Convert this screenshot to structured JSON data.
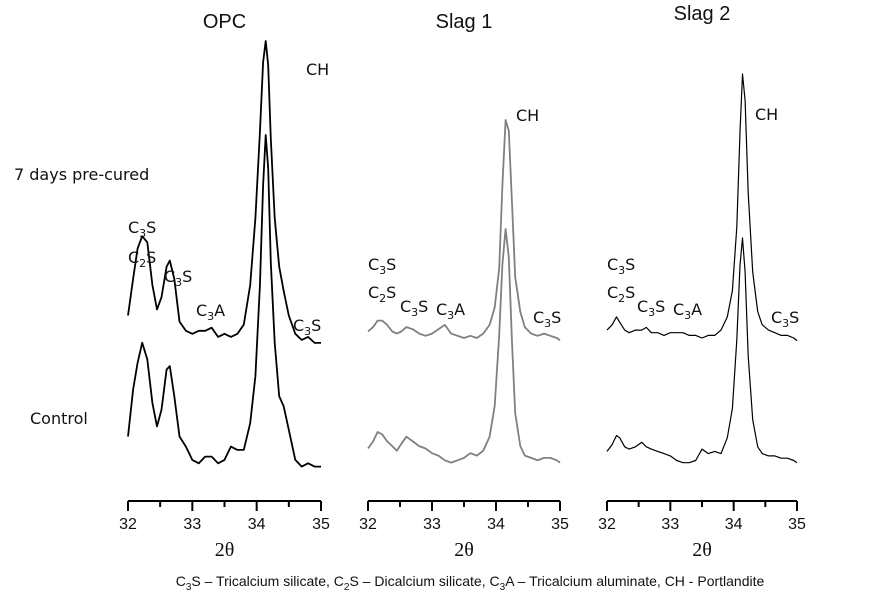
{
  "chart_data": [
    {
      "type": "line",
      "title": "OPC",
      "xlabel": "2θ",
      "xlim": [
        32,
        35
      ],
      "xticks": [
        "32",
        "33",
        "34",
        "35"
      ],
      "color": "#000000",
      "series": [
        {
          "name": "7 days pre-cured",
          "x": [
            32.0,
            32.08,
            32.15,
            32.22,
            32.3,
            32.38,
            32.45,
            32.52,
            32.6,
            32.65,
            32.72,
            32.8,
            32.9,
            33.0,
            33.1,
            33.2,
            33.3,
            33.4,
            33.5,
            33.6,
            33.7,
            33.8,
            33.9,
            33.98,
            34.05,
            34.1,
            34.14,
            34.18,
            34.22,
            34.28,
            34.35,
            34.42,
            34.5,
            34.6,
            34.7,
            34.8,
            34.9,
            35.0
          ],
          "y": [
            0.1,
            0.22,
            0.32,
            0.36,
            0.34,
            0.2,
            0.12,
            0.16,
            0.26,
            0.28,
            0.22,
            0.08,
            0.05,
            0.04,
            0.05,
            0.05,
            0.06,
            0.03,
            0.04,
            0.03,
            0.04,
            0.07,
            0.2,
            0.42,
            0.7,
            0.93,
            1.0,
            0.92,
            0.68,
            0.42,
            0.26,
            0.18,
            0.1,
            0.04,
            0.02,
            0.03,
            0.01,
            0.01
          ]
        },
        {
          "name": "Control",
          "x": [
            32.0,
            32.08,
            32.15,
            32.22,
            32.3,
            32.38,
            32.45,
            32.52,
            32.6,
            32.65,
            32.72,
            32.8,
            32.9,
            33.0,
            33.1,
            33.2,
            33.3,
            33.4,
            33.5,
            33.6,
            33.7,
            33.8,
            33.9,
            33.98,
            34.05,
            34.1,
            34.14,
            34.18,
            34.22,
            34.28,
            34.35,
            34.42,
            34.5,
            34.6,
            34.7,
            34.8,
            34.9,
            35.0
          ],
          "y": [
            0.1,
            0.24,
            0.32,
            0.38,
            0.33,
            0.2,
            0.13,
            0.18,
            0.3,
            0.31,
            0.22,
            0.1,
            0.07,
            0.03,
            0.02,
            0.04,
            0.04,
            0.02,
            0.03,
            0.07,
            0.06,
            0.06,
            0.14,
            0.28,
            0.55,
            0.85,
            1.0,
            0.9,
            0.62,
            0.38,
            0.22,
            0.19,
            0.12,
            0.03,
            0.01,
            0.02,
            0.01,
            0.01
          ]
        }
      ],
      "annotations": [
        {
          "text": "C3S",
          "x": 32.2
        },
        {
          "text": "C2S",
          "x": 32.2
        },
        {
          "text": "C3S",
          "x": 32.65
        },
        {
          "text": "C3A",
          "x": 33.3
        },
        {
          "text": "CH",
          "x": 34.15
        },
        {
          "text": "C3S",
          "x": 34.7
        }
      ]
    },
    {
      "type": "line",
      "title": "Slag 1",
      "xlabel": "2θ",
      "xlim": [
        32,
        35
      ],
      "xticks": [
        "32",
        "33",
        "34",
        "35"
      ],
      "color": "#808080",
      "series": [
        {
          "name": "7 days pre-cured",
          "x": [
            32.0,
            32.08,
            32.15,
            32.22,
            32.3,
            32.38,
            32.45,
            32.52,
            32.6,
            32.7,
            32.8,
            32.9,
            33.0,
            33.1,
            33.2,
            33.3,
            33.4,
            33.5,
            33.6,
            33.7,
            33.8,
            33.9,
            33.98,
            34.05,
            34.1,
            34.15,
            34.2,
            34.25,
            34.3,
            34.38,
            34.45,
            34.55,
            34.65,
            34.75,
            34.85,
            34.95,
            35.0
          ],
          "y": [
            0.03,
            0.05,
            0.08,
            0.08,
            0.06,
            0.03,
            0.02,
            0.03,
            0.05,
            0.04,
            0.02,
            0.01,
            0.02,
            0.04,
            0.06,
            0.02,
            0.01,
            0.0,
            0.01,
            0.0,
            0.02,
            0.06,
            0.14,
            0.32,
            0.7,
            1.0,
            0.95,
            0.62,
            0.28,
            0.12,
            0.05,
            0.02,
            0.01,
            0.02,
            0.01,
            0.0,
            -0.01
          ]
        },
        {
          "name": "Control",
          "x": [
            32.0,
            32.08,
            32.15,
            32.22,
            32.3,
            32.38,
            32.45,
            32.52,
            32.6,
            32.7,
            32.8,
            32.9,
            33.0,
            33.1,
            33.2,
            33.3,
            33.4,
            33.5,
            33.6,
            33.7,
            33.8,
            33.9,
            33.98,
            34.05,
            34.1,
            34.15,
            34.2,
            34.25,
            34.3,
            34.38,
            34.45,
            34.55,
            34.65,
            34.75,
            34.85,
            34.95,
            35.0
          ],
          "y": [
            0.07,
            0.1,
            0.14,
            0.13,
            0.1,
            0.08,
            0.06,
            0.09,
            0.12,
            0.1,
            0.08,
            0.07,
            0.05,
            0.04,
            0.02,
            0.01,
            0.02,
            0.03,
            0.05,
            0.04,
            0.06,
            0.12,
            0.25,
            0.55,
            0.85,
            1.0,
            0.88,
            0.52,
            0.22,
            0.08,
            0.04,
            0.03,
            0.02,
            0.03,
            0.03,
            0.02,
            0.01
          ]
        }
      ],
      "annotations": [
        {
          "text": "C3S",
          "x": 32.15
        },
        {
          "text": "C2S",
          "x": 32.15
        },
        {
          "text": "C3S",
          "x": 32.6
        },
        {
          "text": "C3A",
          "x": 33.2
        },
        {
          "text": "CH",
          "x": 34.15
        },
        {
          "text": "C3S",
          "x": 34.7
        }
      ]
    },
    {
      "type": "line",
      "title": "Slag 2",
      "xlabel": "2θ",
      "xlim": [
        32,
        35
      ],
      "xticks": [
        "32",
        "33",
        "34",
        "35"
      ],
      "color": "#000000",
      "series": [
        {
          "name": "7 days pre-cured",
          "x": [
            32.0,
            32.08,
            32.15,
            32.2,
            32.28,
            32.35,
            32.45,
            32.55,
            32.62,
            32.7,
            32.8,
            32.9,
            33.0,
            33.1,
            33.2,
            33.3,
            33.4,
            33.5,
            33.6,
            33.7,
            33.8,
            33.9,
            33.98,
            34.05,
            34.1,
            34.14,
            34.18,
            34.23,
            34.3,
            34.38,
            34.45,
            34.55,
            34.65,
            34.75,
            34.85,
            34.95,
            35.0
          ],
          "y": [
            0.03,
            0.05,
            0.08,
            0.06,
            0.03,
            0.02,
            0.03,
            0.03,
            0.04,
            0.02,
            0.02,
            0.01,
            0.02,
            0.02,
            0.02,
            0.01,
            0.01,
            0.0,
            0.01,
            0.01,
            0.03,
            0.08,
            0.18,
            0.42,
            0.78,
            1.0,
            0.9,
            0.55,
            0.25,
            0.1,
            0.05,
            0.03,
            0.02,
            0.01,
            0.01,
            0.0,
            -0.01
          ]
        },
        {
          "name": "Control",
          "x": [
            32.0,
            32.08,
            32.15,
            32.2,
            32.28,
            32.35,
            32.45,
            32.55,
            32.62,
            32.7,
            32.8,
            32.9,
            33.0,
            33.1,
            33.2,
            33.3,
            33.4,
            33.5,
            33.6,
            33.7,
            33.8,
            33.9,
            33.98,
            34.05,
            34.1,
            34.14,
            34.18,
            34.23,
            34.3,
            34.38,
            34.45,
            34.55,
            34.65,
            34.75,
            34.85,
            34.95,
            35.0
          ],
          "y": [
            0.06,
            0.09,
            0.13,
            0.12,
            0.08,
            0.07,
            0.08,
            0.1,
            0.08,
            0.07,
            0.06,
            0.05,
            0.04,
            0.02,
            0.01,
            0.01,
            0.02,
            0.07,
            0.05,
            0.06,
            0.05,
            0.12,
            0.25,
            0.55,
            0.88,
            1.0,
            0.85,
            0.48,
            0.2,
            0.08,
            0.05,
            0.04,
            0.04,
            0.03,
            0.03,
            0.02,
            0.01
          ]
        }
      ],
      "annotations": [
        {
          "text": "C3S",
          "x": 32.15
        },
        {
          "text": "C2S",
          "x": 32.15
        },
        {
          "text": "C3S",
          "x": 32.6
        },
        {
          "text": "C3A",
          "x": 33.2
        },
        {
          "text": "CH",
          "x": 34.15
        },
        {
          "text": "C3S",
          "x": 34.7
        }
      ]
    }
  ],
  "row_labels": {
    "top": "7 days pre-cured",
    "bottom": "Control"
  },
  "footnote": [
    {
      "sym": "C",
      "sub": "3",
      "rest": "S – Tricalcium silicate, "
    },
    {
      "sym": "C",
      "sub": "2",
      "rest": "S – Dicalcium silicate, "
    },
    {
      "sym": "C",
      "sub": "3",
      "rest": "A – Tricalcium aluminate, CH - Portlandite"
    }
  ]
}
